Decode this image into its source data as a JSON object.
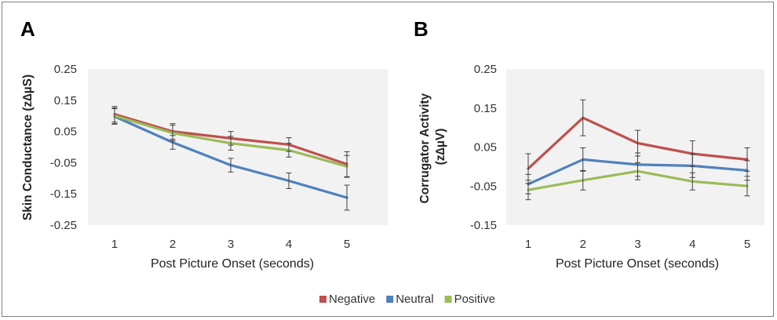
{
  "chart_data": [
    {
      "type": "line",
      "panel_label": "A",
      "title": "",
      "xlabel": "Post Picture Onset (seconds)",
      "ylabel": "Skin Conductance (z∆µS)",
      "x": [
        1,
        2,
        3,
        4,
        5
      ],
      "ylim": [
        -0.25,
        0.25
      ],
      "yticks": [
        0.25,
        0.15,
        0.05,
        -0.05,
        -0.15,
        -0.25
      ],
      "ytick_labels": [
        "0.25",
        "0.15",
        "0.05",
        "-0.05",
        "-0.15",
        "-0.25"
      ],
      "grid": false,
      "series": [
        {
          "name": "Negative",
          "color": "#c0504d",
          "values": [
            0.105,
            0.05,
            0.028,
            0.008,
            -0.055
          ],
          "error": [
            0.025,
            0.025,
            0.022,
            0.022,
            0.04
          ]
        },
        {
          "name": "Neutral",
          "color": "#4f81bd",
          "values": [
            0.098,
            0.015,
            -0.058,
            -0.108,
            -0.162
          ],
          "error": [
            0.025,
            0.022,
            0.022,
            0.025,
            0.04
          ]
        },
        {
          "name": "Positive",
          "color": "#9bbb59",
          "values": [
            0.1,
            0.045,
            0.012,
            -0.01,
            -0.062
          ],
          "error": [
            0.025,
            0.025,
            0.022,
            0.022,
            0.035
          ]
        }
      ]
    },
    {
      "type": "line",
      "panel_label": "B",
      "title": "",
      "xlabel": "Post Picture Onset (seconds)",
      "ylabel": "Corrugator Activity (z∆µV)",
      "x": [
        1,
        2,
        3,
        4,
        5
      ],
      "ylim": [
        -0.15,
        0.25
      ],
      "yticks": [
        0.25,
        0.15,
        0.05,
        -0.05,
        -0.15
      ],
      "ytick_labels": [
        "0.25",
        "0.15",
        "0.05",
        "-0.05",
        "-0.15"
      ],
      "grid": false,
      "series": [
        {
          "name": "Negative",
          "color": "#c0504d",
          "values": [
            -0.005,
            0.125,
            0.06,
            0.033,
            0.018
          ],
          "error": [
            0.038,
            0.046,
            0.033,
            0.033,
            0.03
          ]
        },
        {
          "name": "Neutral",
          "color": "#4f81bd",
          "values": [
            -0.045,
            0.018,
            0.005,
            0.002,
            -0.01
          ],
          "error": [
            0.025,
            0.03,
            0.03,
            0.03,
            0.025
          ]
        },
        {
          "name": "Positive",
          "color": "#9bbb59",
          "values": [
            -0.06,
            -0.035,
            -0.012,
            -0.038,
            -0.05
          ],
          "error": [
            0.025,
            0.025,
            0.022,
            0.022,
            0.025
          ]
        }
      ]
    }
  ],
  "legend": {
    "placement": "bottom-center",
    "items": [
      {
        "label": "Negative",
        "color": "#c0504d"
      },
      {
        "label": "Neutral",
        "color": "#4f81bd"
      },
      {
        "label": "Positive",
        "color": "#9bbb59"
      }
    ]
  }
}
